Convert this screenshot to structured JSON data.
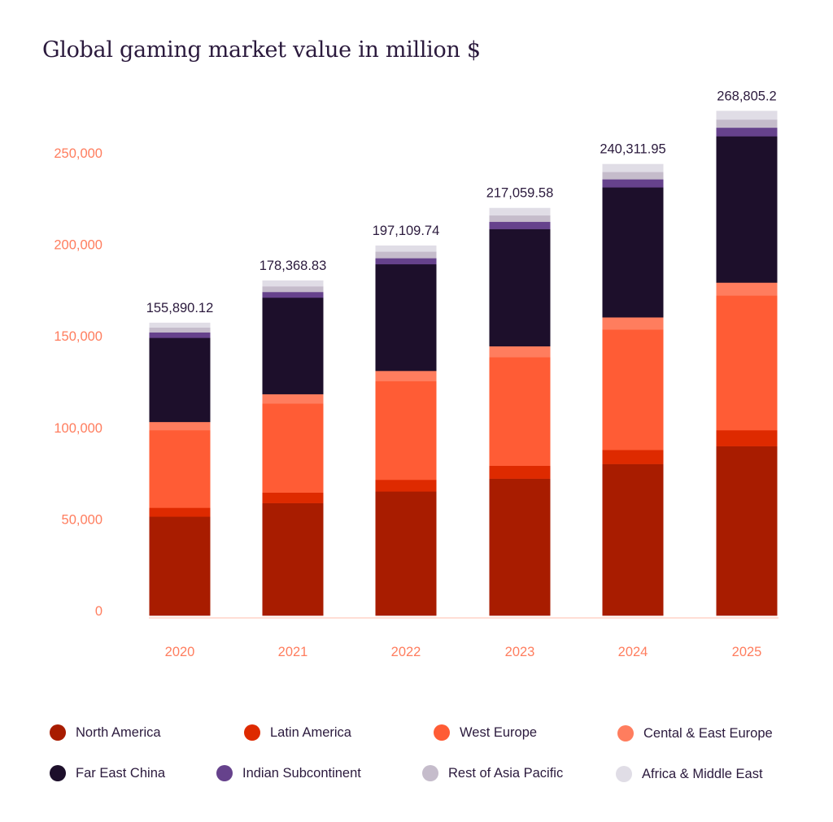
{
  "chart_data": {
    "type": "bar",
    "stacked": true,
    "title": "Global gaming market value in million $",
    "xlabel": "",
    "ylabel": "",
    "categories": [
      "2020",
      "2021",
      "2022",
      "2023",
      "2024",
      "2025"
    ],
    "totals": [
      "155,890.12",
      "178,368.83",
      "197,109.74",
      "217,059.58",
      "240,311.95",
      "268,805.2"
    ],
    "y_ticks": [
      0,
      50000,
      100000,
      150000,
      200000,
      250000
    ],
    "y_tick_labels": [
      "0",
      "50,000",
      "100,000",
      "150,000",
      "200,000",
      "250,000"
    ],
    "ylim": [
      0,
      270000
    ],
    "grid": false,
    "legend_position": "bottom",
    "series": [
      {
        "name": "North America",
        "color": "#a81c00",
        "values": [
          52700,
          59900,
          66100,
          72900,
          80700,
          90200
        ]
      },
      {
        "name": "Latin America",
        "color": "#de2a00",
        "values": [
          4700,
          5600,
          6200,
          6900,
          7500,
          8500
        ]
      },
      {
        "name": "West Europe",
        "color": "#ff5c35",
        "values": [
          41300,
          47400,
          52500,
          57800,
          64100,
          71700
        ]
      },
      {
        "name": "Cental & East Europe",
        "color": "#ff7d5e",
        "values": [
          4400,
          5000,
          5500,
          5800,
          6500,
          6900
        ]
      },
      {
        "name": "Far East China",
        "color": "#1d0f2b",
        "values": [
          44800,
          51400,
          56800,
          62400,
          69200,
          77900
        ]
      },
      {
        "name": "Indian Subcontinent",
        "color": "#66428c",
        "values": [
          2900,
          3000,
          3200,
          3900,
          4300,
          4600
        ]
      },
      {
        "name": "Rest of Asia Pacific",
        "color": "#c5bccb",
        "values": [
          2600,
          3000,
          3500,
          3400,
          3900,
          4300
        ]
      },
      {
        "name": "Africa & Middle East",
        "color": "#e0dde6",
        "values": [
          2500,
          3100,
          3200,
          3900,
          4200,
          4600
        ]
      }
    ],
    "colors": {
      "title": "#2b1a3d",
      "axis_labels": "#ff7d5e",
      "total_labels": "#2b1a3d",
      "baseline": "#ffd3c7"
    }
  }
}
